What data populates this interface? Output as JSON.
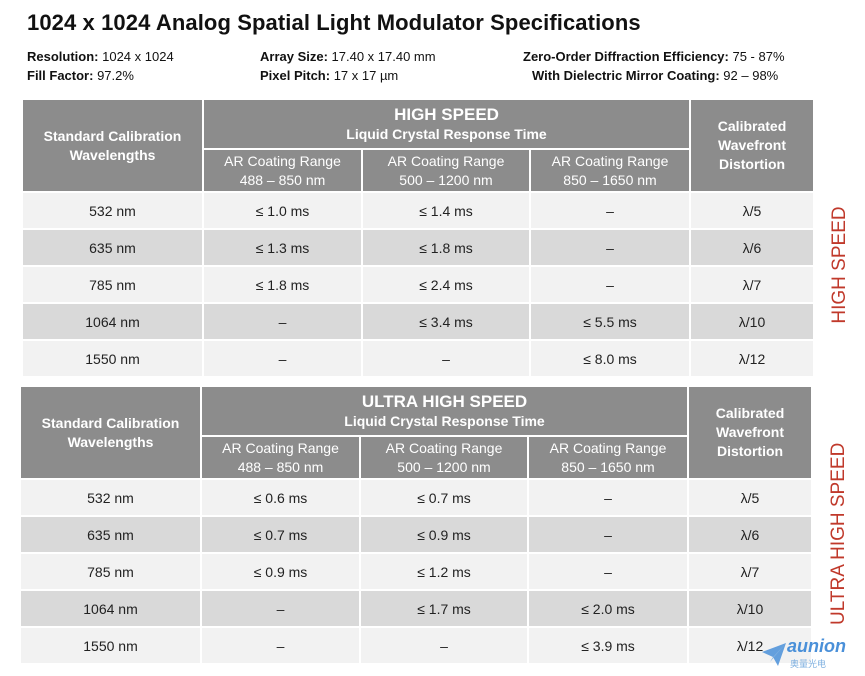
{
  "title": "1024 x 1024 Analog Spatial Light Modulator Specifications",
  "specs": {
    "resolution_label": "Resolution:",
    "resolution_value": " 1024 x 1024",
    "fill_label": "Fill Factor:",
    "fill_value": " 97.2%",
    "array_label": "Array Size:",
    "array_value": " 17.40 x 17.40 mm",
    "pitch_label": "Pixel Pitch:",
    "pitch_value": " 17 x 17 µm",
    "zero_order_label": "Zero-Order Diffraction Efficiency:",
    "zero_order_value": "  75 - 87%",
    "dielectric_label": "With Dielectric  Mirror Coating:",
    "dielectric_value": "  92 – 98%"
  },
  "tables": [
    {
      "corner": "Standard Calibration Wavelengths",
      "group_title": "HIGH SPEED",
      "group_subtitle": "Liquid Crystal Response Time",
      "right_header": "Calibrated Wavefront Distortion",
      "sub_headers": [
        {
          "line1": "AR Coating Range",
          "line2": "488 – 850 nm"
        },
        {
          "line1": "AR Coating Range",
          "line2": "500 – 1200 nm"
        },
        {
          "line1": "AR Coating Range",
          "line2": "850 – 1650 nm"
        }
      ],
      "rows": [
        [
          "532 nm",
          "≤ 1.0 ms",
          "≤ 1.4 ms",
          "–",
          "λ/5"
        ],
        [
          "635 nm",
          "≤ 1.3 ms",
          "≤ 1.8 ms",
          "–",
          "λ/6"
        ],
        [
          "785 nm",
          "≤ 1.8 ms",
          "≤ 2.4 ms",
          "–",
          "λ/7"
        ],
        [
          "1064 nm",
          "–",
          "≤ 3.4 ms",
          "≤ 5.5 ms",
          "λ/10"
        ],
        [
          "1550 nm",
          "–",
          "–",
          "≤ 8.0 ms",
          "λ/12"
        ]
      ],
      "side_label": "HIGH SPEED"
    },
    {
      "corner": "Standard Calibration Wavelengths",
      "group_title": "ULTRA HIGH SPEED",
      "group_subtitle": "Liquid Crystal Response Time",
      "right_header": "Calibrated Wavefront Distortion",
      "sub_headers": [
        {
          "line1": "AR Coating Range",
          "line2": "488 – 850 nm"
        },
        {
          "line1": "AR Coating Range",
          "line2": "500 – 1200 nm"
        },
        {
          "line1": "AR Coating Range",
          "line2": "850 – 1650 nm"
        }
      ],
      "rows": [
        [
          "532 nm",
          "≤ 0.6 ms",
          "≤ 0.7 ms",
          "–",
          "λ/5"
        ],
        [
          "635 nm",
          "≤ 0.7 ms",
          "≤ 0.9 ms",
          "–",
          "λ/6"
        ],
        [
          "785 nm",
          "≤ 0.9 ms",
          "≤ 1.2 ms",
          "–",
          "λ/7"
        ],
        [
          "1064 nm",
          "–",
          "≤ 1.7 ms",
          "≤ 2.0 ms",
          "λ/10"
        ],
        [
          "1550 nm",
          "–",
          "–",
          "≤ 3.9 ms",
          "λ/12"
        ]
      ],
      "side_label": "ULTRA HIGH SPEED"
    }
  ],
  "watermark": {
    "text": "aunion",
    "subtext": "奥量光电",
    "color": "#4a90d9",
    "icon": "paper-plane-icon"
  },
  "colors": {
    "header_bg": "#8c8c8c",
    "row_light": "#f2f2f2",
    "row_dark": "#d9d9d9",
    "side_label": "#c0392b"
  }
}
